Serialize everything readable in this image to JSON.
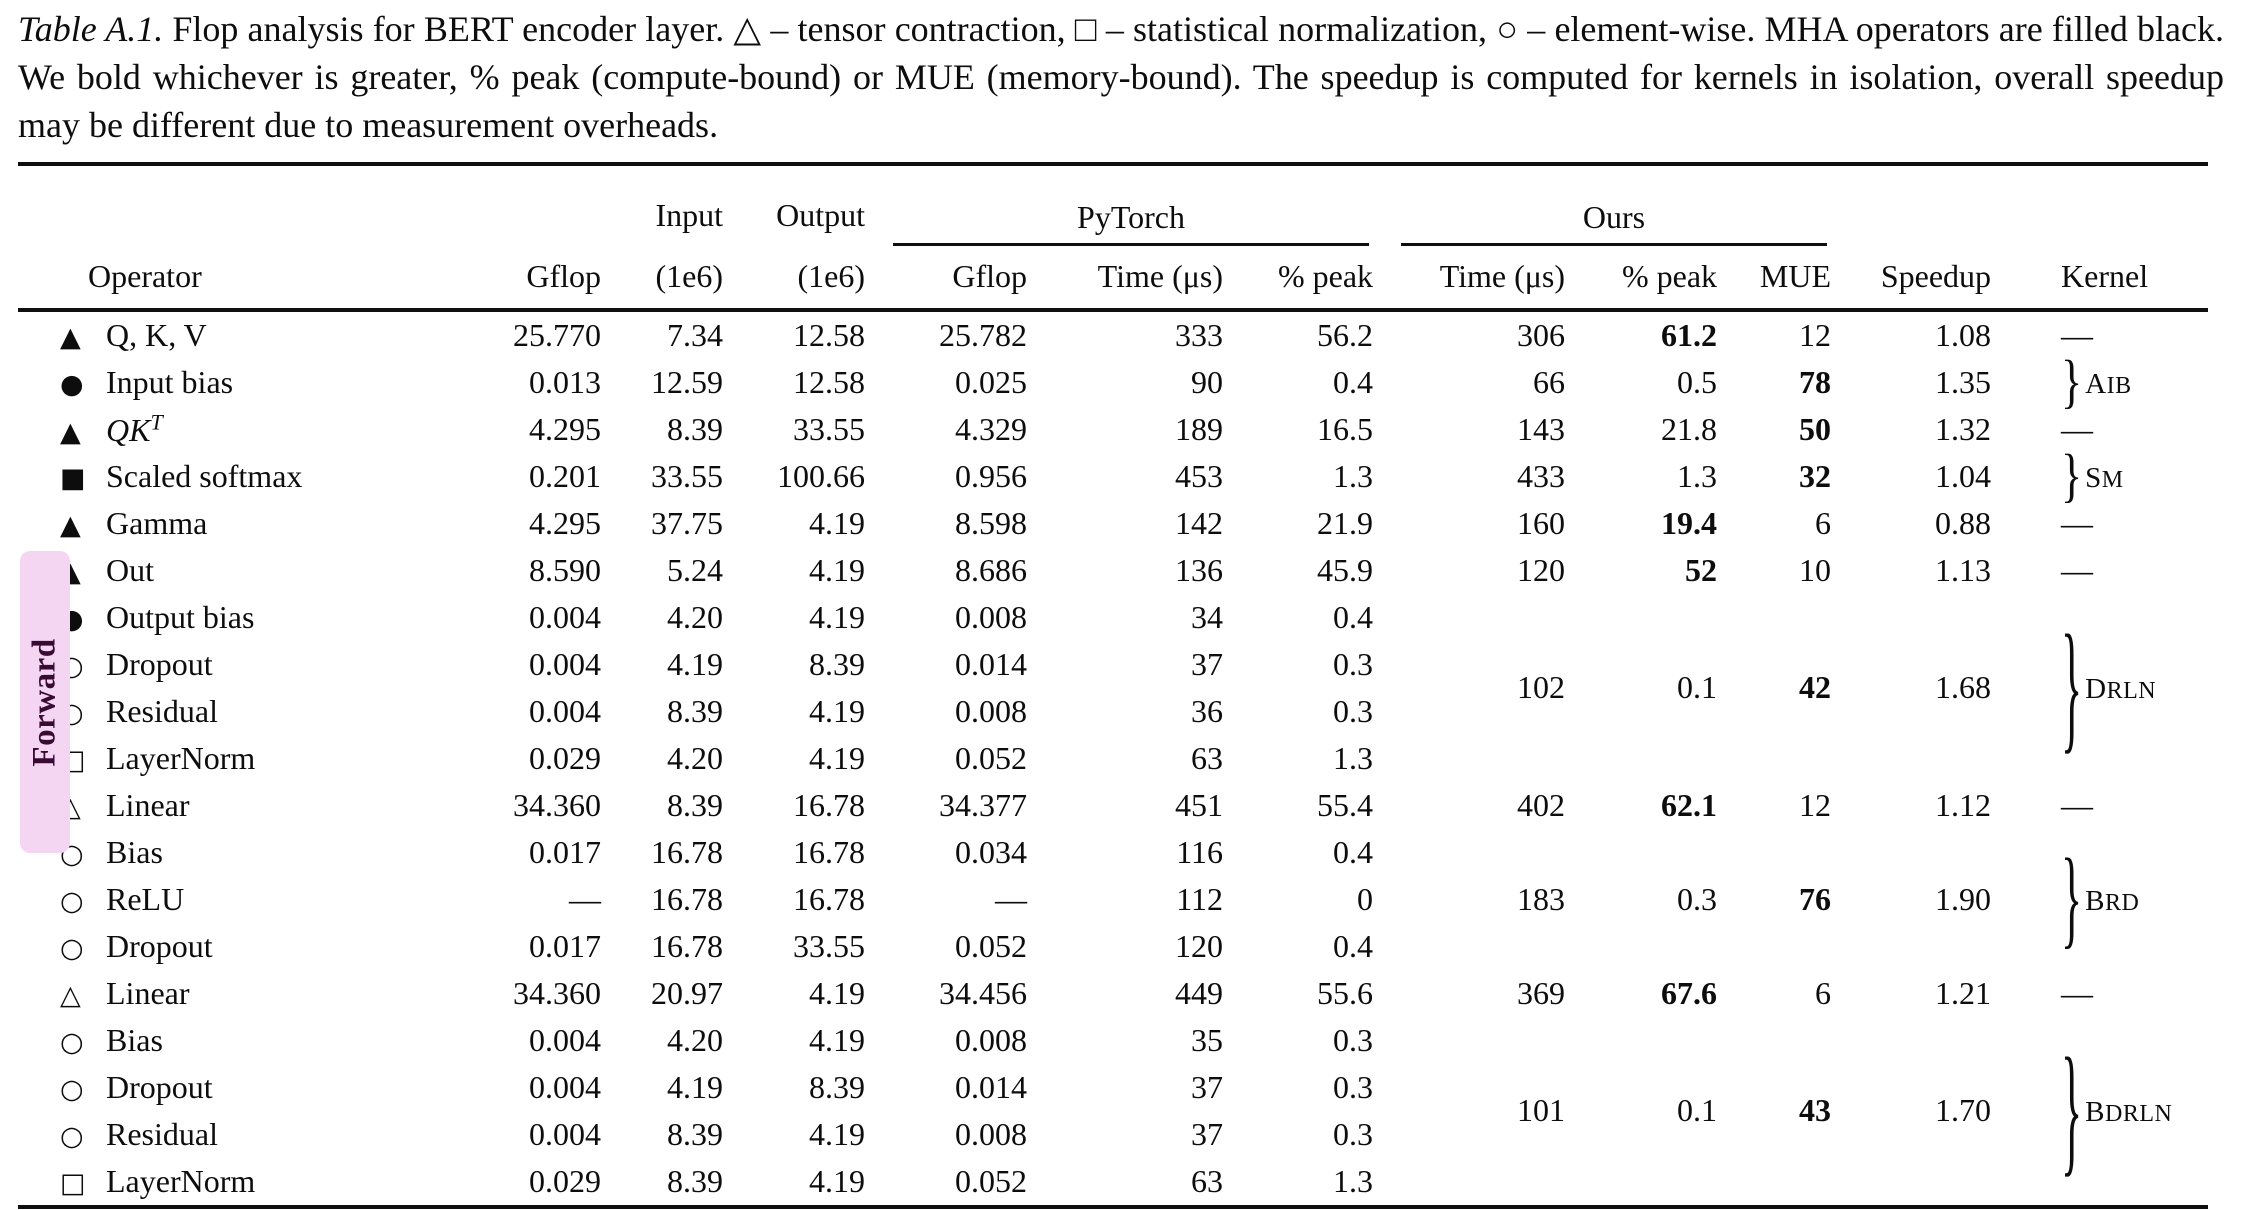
{
  "caption": {
    "label": "Table A.1.",
    "text": "Flop analysis for BERT encoder layer. △ – tensor contraction, □ – statistical normalization, ○ – element-wise. MHA operators are filled black. We bold whichever is greater, % peak (compute-bound) or MUE (memory-bound). The speedup is computed for kernels in isolation, overall speedup may be different due to measurement overheads."
  },
  "side_label": {
    "text": "Forward",
    "bg": "#f4d6f2",
    "fg": "#380a34"
  },
  "colors": {
    "rule": "#0f0f0f",
    "text": "#0d0d0d",
    "background": "#ffffff"
  },
  "misc": {
    "dash": "—"
  },
  "table": {
    "groups_header": {
      "input": "Input",
      "output": "Output",
      "pytorch": "PyTorch",
      "ours": "Ours"
    },
    "columns": [
      "Operator",
      "Gflop",
      "(1e6)",
      "(1e6)",
      "Gflop",
      "Time (μs)",
      "% peak",
      "Time (μs)",
      "% peak",
      "MUE",
      "Speedup",
      "Kernel"
    ],
    "symbols": {
      "triangle-filled": "▲",
      "triangle-open": "△",
      "circle-filled": "●",
      "circle-open": "○",
      "square-filled": "■",
      "square-open": "□"
    },
    "rows": [
      {
        "symbol": "triangle-filled",
        "operator": "Q, K, V",
        "gflop": "25.770",
        "input": "7.34",
        "output": "12.58",
        "pt_gflop": "25.782",
        "pt_time": "333",
        "pt_peak": "56.2",
        "ours_time": "306",
        "ours_peak": "61.2",
        "mue": "12",
        "speedup": "1.08",
        "bold": "peak",
        "kernel": "dash"
      },
      {
        "symbol": "circle-filled",
        "operator": "Input bias",
        "gflop": "0.013",
        "input": "12.59",
        "output": "12.58",
        "pt_gflop": "0.025",
        "pt_time": "90",
        "pt_peak": "0.4",
        "ours_time": "66",
        "ours_peak": "0.5",
        "mue": "78",
        "speedup": "1.35",
        "bold": "mue",
        "kernel": "brace",
        "kernel_label": "AIB"
      },
      {
        "symbol": "triangle-filled",
        "operator": "QK",
        "operator_sup": "T",
        "italic": true,
        "gflop": "4.295",
        "input": "8.39",
        "output": "33.55",
        "pt_gflop": "4.329",
        "pt_time": "189",
        "pt_peak": "16.5",
        "ours_time": "143",
        "ours_peak": "21.8",
        "mue": "50",
        "speedup": "1.32",
        "bold": "mue",
        "kernel": "dash"
      },
      {
        "symbol": "square-filled",
        "operator": "Scaled softmax",
        "gflop": "0.201",
        "input": "33.55",
        "output": "100.66",
        "pt_gflop": "0.956",
        "pt_time": "453",
        "pt_peak": "1.3",
        "ours_time": "433",
        "ours_peak": "1.3",
        "mue": "32",
        "speedup": "1.04",
        "bold": "mue",
        "kernel": "brace",
        "kernel_label": "SM"
      },
      {
        "symbol": "triangle-filled",
        "operator": "Gamma",
        "gflop": "4.295",
        "input": "37.75",
        "output": "4.19",
        "pt_gflop": "8.598",
        "pt_time": "142",
        "pt_peak": "21.9",
        "ours_time": "160",
        "ours_peak": "19.4",
        "mue": "6",
        "speedup": "0.88",
        "bold": "peak",
        "kernel": "dash"
      },
      {
        "symbol": "triangle-filled",
        "operator": "Out",
        "gflop": "8.590",
        "input": "5.24",
        "output": "4.19",
        "pt_gflop": "8.686",
        "pt_time": "136",
        "pt_peak": "45.9",
        "ours_time": "120",
        "ours_peak": "52",
        "mue": "10",
        "speedup": "1.13",
        "bold": "peak",
        "kernel": "dash"
      },
      {
        "symbol": "circle-filled",
        "operator": "Output bias",
        "gflop": "0.004",
        "input": "4.20",
        "output": "4.19",
        "pt_gflop": "0.008",
        "pt_time": "34",
        "pt_peak": "0.4",
        "merged": true
      },
      {
        "symbol": "circle-open",
        "operator": "Dropout",
        "gflop": "0.004",
        "input": "4.19",
        "output": "8.39",
        "pt_gflop": "0.014",
        "pt_time": "37",
        "pt_peak": "0.3",
        "merged": true
      },
      {
        "symbol": "circle-open",
        "operator": "Residual",
        "gflop": "0.004",
        "input": "8.39",
        "output": "4.19",
        "pt_gflop": "0.008",
        "pt_time": "36",
        "pt_peak": "0.3",
        "merged": true
      },
      {
        "symbol": "square-open",
        "operator": "LayerNorm",
        "gflop": "0.029",
        "input": "4.20",
        "output": "4.19",
        "pt_gflop": "0.052",
        "pt_time": "63",
        "pt_peak": "1.3",
        "merged": true
      },
      {
        "symbol": "triangle-open",
        "operator": "Linear",
        "gflop": "34.360",
        "input": "8.39",
        "output": "16.78",
        "pt_gflop": "34.377",
        "pt_time": "451",
        "pt_peak": "55.4",
        "ours_time": "402",
        "ours_peak": "62.1",
        "mue": "12",
        "speedup": "1.12",
        "bold": "peak",
        "kernel": "dash"
      },
      {
        "symbol": "circle-open",
        "operator": "Bias",
        "gflop": "0.017",
        "input": "16.78",
        "output": "16.78",
        "pt_gflop": "0.034",
        "pt_time": "116",
        "pt_peak": "0.4",
        "merged": true
      },
      {
        "symbol": "circle-open",
        "operator": "ReLU",
        "gflop": "—",
        "input": "16.78",
        "output": "16.78",
        "pt_gflop": "—",
        "pt_time": "112",
        "pt_peak": "0",
        "merged": true
      },
      {
        "symbol": "circle-open",
        "operator": "Dropout",
        "gflop": "0.017",
        "input": "16.78",
        "output": "33.55",
        "pt_gflop": "0.052",
        "pt_time": "120",
        "pt_peak": "0.4",
        "merged": true
      },
      {
        "symbol": "triangle-open",
        "operator": "Linear",
        "gflop": "34.360",
        "input": "20.97",
        "output": "4.19",
        "pt_gflop": "34.456",
        "pt_time": "449",
        "pt_peak": "55.6",
        "ours_time": "369",
        "ours_peak": "67.6",
        "mue": "6",
        "speedup": "1.21",
        "bold": "peak",
        "kernel": "dash"
      },
      {
        "symbol": "circle-open",
        "operator": "Bias",
        "gflop": "0.004",
        "input": "4.20",
        "output": "4.19",
        "pt_gflop": "0.008",
        "pt_time": "35",
        "pt_peak": "0.3",
        "merged": true
      },
      {
        "symbol": "circle-open",
        "operator": "Dropout",
        "gflop": "0.004",
        "input": "4.19",
        "output": "8.39",
        "pt_gflop": "0.014",
        "pt_time": "37",
        "pt_peak": "0.3",
        "merged": true
      },
      {
        "symbol": "circle-open",
        "operator": "Residual",
        "gflop": "0.004",
        "input": "8.39",
        "output": "4.19",
        "pt_gflop": "0.008",
        "pt_time": "37",
        "pt_peak": "0.3",
        "merged": true
      },
      {
        "symbol": "square-open",
        "operator": "LayerNorm",
        "gflop": "0.029",
        "input": "8.39",
        "output": "4.19",
        "pt_gflop": "0.052",
        "pt_time": "63",
        "pt_peak": "1.3",
        "merged": true
      }
    ],
    "merged_ours": [
      {
        "start": 6,
        "span": 4,
        "time": "102",
        "peak": "0.1",
        "mue": "42",
        "speedup": "1.68",
        "bold": "mue",
        "kernel": "DRLN"
      },
      {
        "start": 11,
        "span": 3,
        "time": "183",
        "peak": "0.3",
        "mue": "76",
        "speedup": "1.90",
        "bold": "mue",
        "kernel": "BRD"
      },
      {
        "start": 15,
        "span": 4,
        "time": "101",
        "peak": "0.1",
        "mue": "43",
        "speedup": "1.70",
        "bold": "mue",
        "kernel": "BDRLN"
      }
    ]
  }
}
